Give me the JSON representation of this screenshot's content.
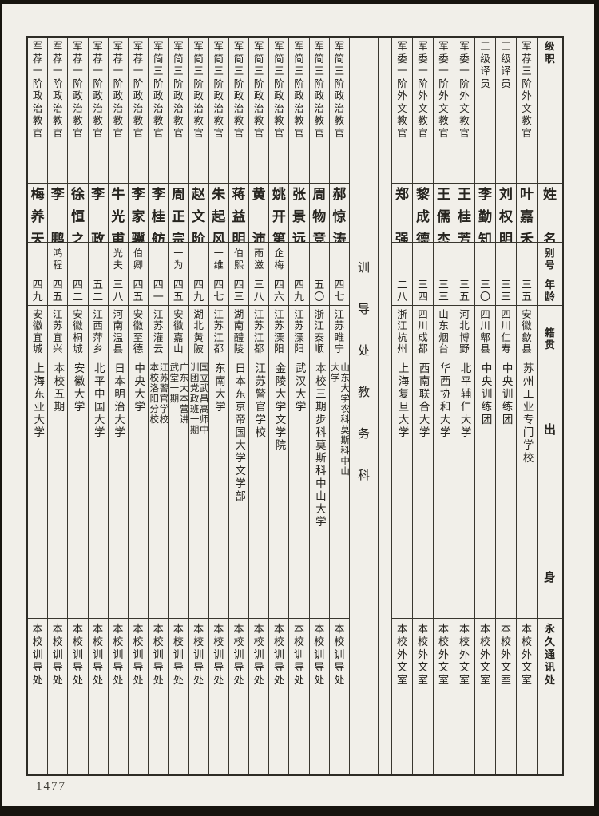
{
  "colors": {
    "paper": "#f1efe9",
    "ink": "#26241f"
  },
  "page": {
    "number": "1477"
  },
  "table": {
    "headers": {
      "rank": "级职",
      "name": "姓名",
      "alias": "别号",
      "age": "年龄",
      "native_place": "籍贯",
      "origin": "出身",
      "address": "永久通讯处"
    },
    "divider_label": "训导处教务科",
    "sections": [
      {
        "name": "训导处",
        "people": [
          {
            "rank": "军荐一阶政治教官",
            "name": "梅养天",
            "alias": "",
            "age": "四九",
            "native_place": "安徽宜城",
            "origin": "上海东亚大学",
            "address": "本校训导处"
          },
          {
            "rank": "军荐一阶政治教官",
            "name": "李鹏",
            "alias": "鸿程",
            "age": "四五",
            "native_place": "江苏宜兴",
            "origin": "本校五期",
            "address": "本校训导处"
          },
          {
            "rank": "军荐一阶政治教官",
            "name": "徐恒之",
            "alias": "",
            "age": "四二",
            "native_place": "安徽桐城",
            "origin": "安徽大学",
            "address": "本校训导处"
          },
          {
            "rank": "军荐一阶政治教官",
            "name": "李政",
            "alias": "",
            "age": "五二",
            "native_place": "江西萍乡",
            "origin": "北平中国大学",
            "address": "本校训导处"
          },
          {
            "rank": "军荐一阶政治教官",
            "name": "牛光甫",
            "alias": "光夫",
            "age": "三八",
            "native_place": "河南温县",
            "origin": "日本明治大学",
            "address": "本校训导处"
          },
          {
            "rank": "军荐一阶政治教官",
            "name": "李家骥",
            "alias": "伯卿",
            "age": "四五",
            "native_place": "安徽至德",
            "origin": "中央大学",
            "address": "本校训导处"
          },
          {
            "rank": "军简三阶政治教官",
            "name": "李桂舫",
            "alias": "",
            "age": "四一",
            "native_place": "江苏灌云",
            "origin": "江苏警官学校\n本校洛阳分校",
            "address": "本校训导处"
          },
          {
            "rank": "军简三阶政治教官",
            "name": "周正宗",
            "alias": "一为",
            "age": "四五",
            "native_place": "安徽嘉山",
            "origin": "广东大本营讲\n武堂一期",
            "address": "本校训导处"
          },
          {
            "rank": "军简三阶政治教官",
            "name": "赵文阶",
            "alias": "",
            "age": "四九",
            "native_place": "湖北黄陂",
            "origin": "国立武昌高师中\n训团党政班一期",
            "address": "本校训导处"
          },
          {
            "rank": "军简三阶政治教官",
            "name": "朱起风",
            "alias": "一维",
            "age": "四七",
            "native_place": "江苏江都",
            "origin": "东南大学",
            "address": "本校训导处"
          },
          {
            "rank": "军简三阶政治教官",
            "name": "蒋益明",
            "alias": "伯熙",
            "age": "四三",
            "native_place": "湖南醴陵",
            "origin": "日本东京帝国大学文学部",
            "address": "本校训导处"
          },
          {
            "rank": "军简三阶政治教官",
            "name": "黄沛",
            "alias": "雨滋",
            "age": "三八",
            "native_place": "江苏江都",
            "origin": "江苏警官学校",
            "address": "本校训导处"
          },
          {
            "rank": "军简三阶政治教官",
            "name": "姚开第",
            "alias": "企梅",
            "age": "四六",
            "native_place": "江苏溧阳",
            "origin": "金陵大学文学院",
            "address": "本校训导处"
          },
          {
            "rank": "军简三阶政治教官",
            "name": "张景远",
            "alias": "",
            "age": "四九",
            "native_place": "江苏溧阳",
            "origin": "武汉大学",
            "address": "本校训导处"
          },
          {
            "rank": "军简三阶政治教官",
            "name": "周物竞",
            "alias": "",
            "age": "五〇",
            "native_place": "浙江泰顺",
            "origin": "本校三期步科莫斯科中山大学",
            "address": "本校训导处"
          },
          {
            "rank": "军简三阶政治教官",
            "name": "郝惊涛",
            "alias": "",
            "age": "四七",
            "native_place": "江苏睢宁",
            "origin": "山东大学农科莫斯科中山\n大学",
            "address": "本校训导处"
          }
        ]
      },
      {
        "name": "教务科",
        "people": [
          {
            "rank": "军委一阶外文教官",
            "name": "郑强",
            "alias": "",
            "age": "二八",
            "native_place": "浙江杭州",
            "origin": "上海复旦大学",
            "address": "本校外文室"
          },
          {
            "rank": "军委一阶外文教官",
            "name": "黎成德",
            "alias": "",
            "age": "三四",
            "native_place": "四川成都",
            "origin": "西南联合大学",
            "address": "本校外文室"
          },
          {
            "rank": "军委一阶外文教官",
            "name": "王儒杰",
            "alias": "",
            "age": "三三",
            "native_place": "山东烟台",
            "origin": "华西协和大学",
            "address": "本校外文室"
          },
          {
            "rank": "军委一阶外文教官",
            "name": "王桂芳",
            "alias": "",
            "age": "三五",
            "native_place": "河北博野",
            "origin": "北平辅仁大学",
            "address": "本校外文室"
          },
          {
            "rank": "三级译员",
            "name": "李勤知",
            "alias": "",
            "age": "三〇",
            "native_place": "四川郫县",
            "origin": "中央训练团",
            "address": "本校外文室"
          },
          {
            "rank": "三级译员",
            "name": "刘权明",
            "alias": "",
            "age": "三三",
            "native_place": "四川仁寿",
            "origin": "中央训练团",
            "address": "本校外文室"
          },
          {
            "rank": "军荐三阶外文教官",
            "name": "叶嘉禾",
            "alias": "",
            "age": "三五",
            "native_place": "安徽歙县",
            "origin": "苏州工业专门学校",
            "address": "本校外文室"
          }
        ]
      }
    ]
  }
}
